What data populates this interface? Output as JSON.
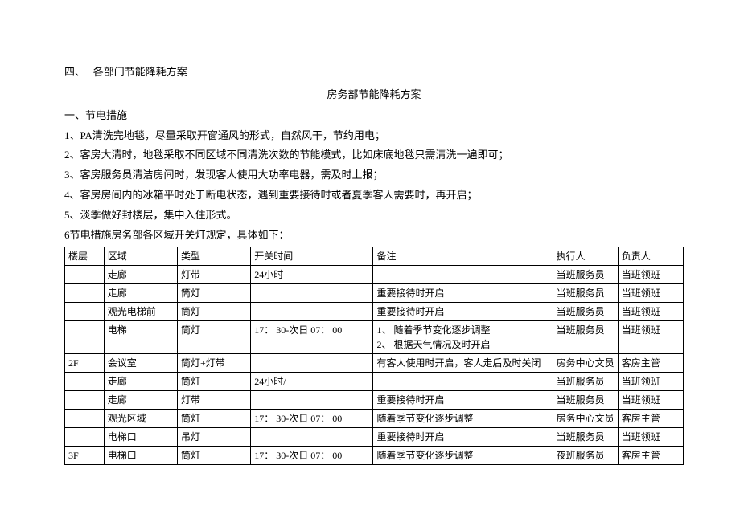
{
  "heading": "四、　 各部门节能降耗方案",
  "subtitle": "房务部节能降耗方案",
  "section1_title": "一、节电措施",
  "bullets": [
    "1、PA清洗完地毯，尽量采取开窗通风的形式，自然风干，节约用电；",
    "2、客房大清时，地毯采取不同区域不同清洗次数的节能模式，比如床底地毯只需清洗一遍即可；",
    "3、客房服务员清洁房间时，发现客人使用大功率电器，需及时上报；",
    "4、客房房间内的冰箱平时处于断电状态，遇到重要接待时或者夏季客人需要时，再开启；",
    "5、淡季做好封楼层，集中入住形式。",
    "6节电措施房务部各区域开关灯规定，具体如下："
  ],
  "table": {
    "columns": [
      "楼层",
      "区域",
      "类型",
      "开关时间",
      "备注",
      "执行人",
      "负责人"
    ],
    "rows": [
      {
        "floor": "",
        "area": "走廊",
        "type": "灯带",
        "time": "24小时",
        "remark": "",
        "exec": "当班服务员",
        "resp": "当班领班"
      },
      {
        "floor": "",
        "area": "走廊",
        "type": "筒灯",
        "time": "",
        "remark": "重要接待时开启",
        "exec": "当班服务员",
        "resp": "当班领班"
      },
      {
        "floor": "",
        "area": "观光电梯前",
        "type": "筒灯",
        "time": "",
        "remark": "重要接待时开启",
        "exec": "当班服务员",
        "resp": "当班领班"
      },
      {
        "floor": "",
        "area": "电梯",
        "type": "筒灯",
        "time": "17：  30-次日 07：  00",
        "remark": "1、 随着季节变化逐步调整\n2、 根据天气情况及时开启",
        "exec": "当班服务员",
        "resp": "当班领班"
      },
      {
        "floor": "2F",
        "area": "会议室",
        "type": "筒灯+灯带",
        "time": "",
        "remark": "有客人使用时开启，客人走后及时关闭",
        "exec": "房务中心文员",
        "resp": "客房主管"
      },
      {
        "floor": "",
        "area": "走廊",
        "type": "筒灯",
        "time": "24小时/",
        "remark": "",
        "exec": "当班服务员",
        "resp": "当班领班"
      },
      {
        "floor": "",
        "area": "走廊",
        "type": "灯带",
        "time": "",
        "remark": "重要接待时开启",
        "exec": "当班服务员",
        "resp": "当班领班"
      },
      {
        "floor": "",
        "area": "观光区域",
        "type": "筒灯",
        "time": "17：  30-次日 07：  00",
        "remark": "随着季节变化逐步调整",
        "exec": "房务中心文员",
        "resp": "客房主管"
      },
      {
        "floor": "",
        "area": "电梯口",
        "type": "吊灯",
        "time": "",
        "remark": "重要接待时开启",
        "exec": "当班服务员",
        "resp": "当班领班"
      },
      {
        "floor": "3F",
        "area": "电梯口",
        "type": "筒灯",
        "time": "17：  30-次日 07：  00",
        "remark": "随着季节变化逐步调整",
        "exec": "夜班服务员",
        "resp": "客房主管"
      }
    ]
  }
}
